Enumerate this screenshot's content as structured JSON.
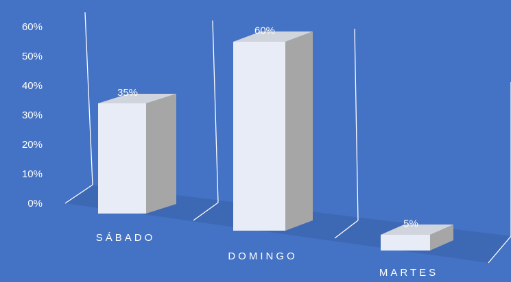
{
  "chart_data": {
    "type": "bar",
    "style": "3d-column",
    "categories": [
      "SÁBADO",
      "DOMINGO",
      "MARTES"
    ],
    "values": [
      35,
      60,
      5
    ],
    "value_labels": [
      "35%",
      "60%",
      "5%"
    ],
    "ylim": [
      0,
      60
    ],
    "yticks": [
      "0%",
      "10%",
      "20%",
      "30%",
      "40%",
      "50%",
      "60%"
    ],
    "grid": false,
    "legend": "none",
    "colors": {
      "background": "#4472c4",
      "bar_front": "#e8ecf7",
      "bar_side": "#a6a6a6",
      "bar_top": "#d0d4dc",
      "floor": "#3d68b4",
      "walls": "#ffffff",
      "text": "#ffffff"
    }
  }
}
